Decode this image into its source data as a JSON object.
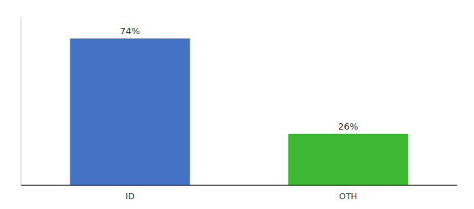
{
  "chart_data": {
    "type": "bar",
    "categories": [
      "ID",
      "OTH"
    ],
    "values": [
      74,
      26
    ],
    "value_labels": [
      "74%",
      "26%"
    ],
    "colors": [
      "#4472c4",
      "#3cb832"
    ],
    "ylim": [
      0,
      85
    ],
    "data_labels": true,
    "tick_labels": "x",
    "grid": false
  }
}
